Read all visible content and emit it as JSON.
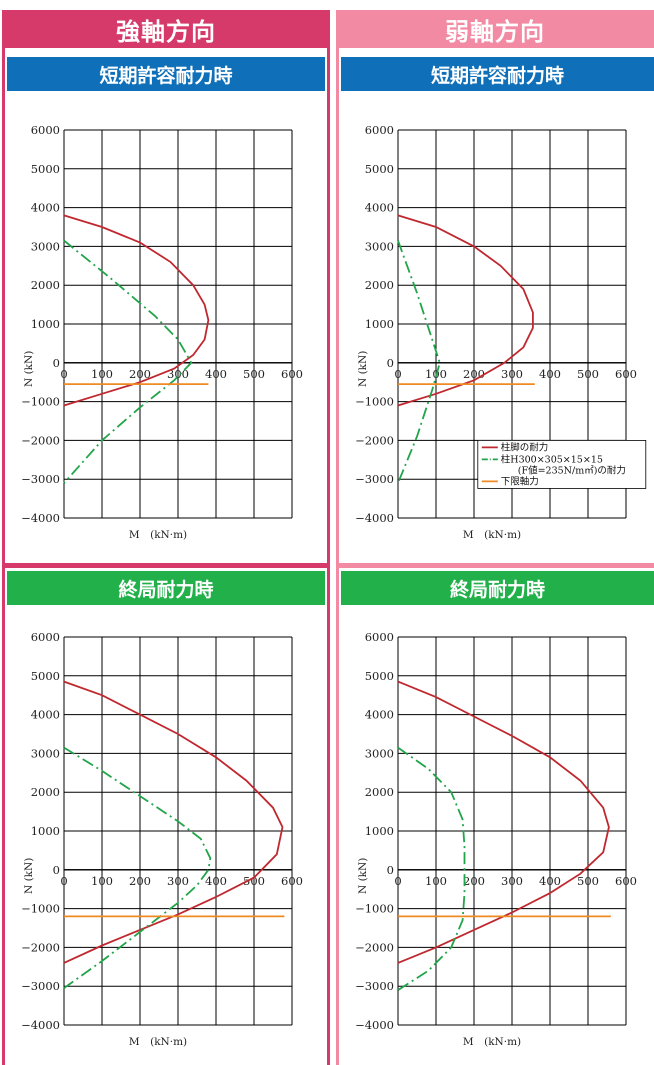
{
  "strong_axis": {
    "title": "強軸方向",
    "color": "#d63a6b",
    "panels": [
      {
        "title": "短期許容耐力時",
        "header_color": "#0f6fb8"
      },
      {
        "title": "終局耐力時",
        "header_color": "#22b04a"
      }
    ]
  },
  "weak_axis": {
    "title": "弱軸方向",
    "color": "#f28aa4",
    "panels": [
      {
        "title": "短期許容耐力時",
        "header_color": "#0f6fb8"
      },
      {
        "title": "終局耐力時",
        "header_color": "#22b04a"
      }
    ]
  },
  "legend": {
    "items": [
      {
        "label": "柱脚の耐力"
      },
      {
        "label": "柱H300×305×15×15",
        "label2": "(F値=235N/m㎡)の耐力"
      },
      {
        "label": "下限軸力"
      }
    ]
  },
  "series_colors": {
    "base": "#c0282f",
    "column": "#21a54a",
    "limit": "#ef8a22"
  },
  "chart_data": [
    {
      "type": "line",
      "panel": "strong-short",
      "xlabel": "M　(kN·m)",
      "ylabel": "N (kN)",
      "xlim": [
        0,
        600
      ],
      "ylim": [
        -4000,
        6000
      ],
      "xticks": [
        0,
        100,
        200,
        300,
        400,
        500,
        600
      ],
      "yticks": [
        6000,
        5000,
        4000,
        3000,
        2000,
        1000,
        0,
        -1000,
        -2000,
        -3000,
        -4000
      ],
      "grid": true,
      "series": [
        {
          "key": "base",
          "style": "solid",
          "points": [
            [
              0,
              3800
            ],
            [
              100,
              3500
            ],
            [
              200,
              3100
            ],
            [
              280,
              2600
            ],
            [
              340,
              2000
            ],
            [
              370,
              1500
            ],
            [
              380,
              1100
            ],
            [
              370,
              600
            ],
            [
              340,
              200
            ],
            [
              290,
              -150
            ],
            [
              200,
              -500
            ],
            [
              100,
              -800
            ],
            [
              0,
              -1100
            ]
          ]
        },
        {
          "key": "column",
          "style": "dashdot",
          "points": [
            [
              0,
              3150
            ],
            [
              120,
              2200
            ],
            [
              240,
              1200
            ],
            [
              300,
              600
            ],
            [
              335,
              0
            ],
            [
              290,
              -450
            ],
            [
              200,
              -1150
            ],
            [
              100,
              -2000
            ],
            [
              0,
              -3100
            ]
          ]
        },
        {
          "key": "limit",
          "style": "solid",
          "points": [
            [
              0,
              -550
            ],
            [
              380,
              -550
            ]
          ]
        }
      ]
    },
    {
      "type": "line",
      "panel": "weak-short",
      "xlabel": "M　(kN·m)",
      "ylabel": "N (kN)",
      "xlim": [
        0,
        600
      ],
      "ylim": [
        -4000,
        6000
      ],
      "xticks": [
        0,
        100,
        200,
        300,
        400,
        500,
        600
      ],
      "yticks": [
        6000,
        5000,
        4000,
        3000,
        2000,
        1000,
        0,
        -1000,
        -2000,
        -3000,
        -4000
      ],
      "grid": true,
      "legend": "lower-right",
      "series": [
        {
          "key": "base",
          "style": "solid",
          "points": [
            [
              0,
              3800
            ],
            [
              100,
              3500
            ],
            [
              200,
              3000
            ],
            [
              270,
              2500
            ],
            [
              330,
              1900
            ],
            [
              355,
              1300
            ],
            [
              355,
              900
            ],
            [
              330,
              400
            ],
            [
              280,
              0
            ],
            [
              200,
              -450
            ],
            [
              100,
              -800
            ],
            [
              0,
              -1100
            ]
          ]
        },
        {
          "key": "column",
          "style": "dashdot",
          "points": [
            [
              0,
              3150
            ],
            [
              50,
              1800
            ],
            [
              90,
              600
            ],
            [
              110,
              0
            ],
            [
              90,
              -700
            ],
            [
              50,
              -1900
            ],
            [
              0,
              -3100
            ]
          ]
        },
        {
          "key": "limit",
          "style": "solid",
          "points": [
            [
              0,
              -550
            ],
            [
              360,
              -550
            ]
          ]
        }
      ]
    },
    {
      "type": "line",
      "panel": "strong-ultimate",
      "xlabel": "M　(kN·m)",
      "ylabel": "N (kN)",
      "xlim": [
        0,
        600
      ],
      "ylim": [
        -4000,
        6000
      ],
      "xticks": [
        0,
        100,
        200,
        300,
        400,
        500,
        600
      ],
      "yticks": [
        6000,
        5000,
        4000,
        3000,
        2000,
        1000,
        0,
        -1000,
        -2000,
        -3000,
        -4000
      ],
      "grid": true,
      "series": [
        {
          "key": "base",
          "style": "solid",
          "points": [
            [
              0,
              4850
            ],
            [
              100,
              4500
            ],
            [
              200,
              4000
            ],
            [
              300,
              3500
            ],
            [
              400,
              2900
            ],
            [
              480,
              2300
            ],
            [
              550,
              1600
            ],
            [
              575,
              1100
            ],
            [
              560,
              400
            ],
            [
              500,
              -200
            ],
            [
              400,
              -700
            ],
            [
              300,
              -1150
            ],
            [
              200,
              -1550
            ],
            [
              100,
              -1950
            ],
            [
              0,
              -2400
            ]
          ]
        },
        {
          "key": "column",
          "style": "dashdot",
          "points": [
            [
              0,
              3150
            ],
            [
              100,
              2550
            ],
            [
              200,
              1900
            ],
            [
              300,
              1250
            ],
            [
              360,
              800
            ],
            [
              385,
              300
            ],
            [
              380,
              0
            ],
            [
              350,
              -400
            ],
            [
              300,
              -850
            ],
            [
              200,
              -1600
            ],
            [
              100,
              -2350
            ],
            [
              0,
              -3050
            ]
          ]
        },
        {
          "key": "limit",
          "style": "solid",
          "points": [
            [
              0,
              -1200
            ],
            [
              580,
              -1200
            ]
          ]
        }
      ]
    },
    {
      "type": "line",
      "panel": "weak-ultimate",
      "xlabel": "M　(kN·m)",
      "ylabel": "N (kN)",
      "xlim": [
        0,
        600
      ],
      "ylim": [
        -4000,
        6000
      ],
      "xticks": [
        0,
        100,
        200,
        300,
        400,
        500,
        600
      ],
      "yticks": [
        6000,
        5000,
        4000,
        3000,
        2000,
        1000,
        0,
        -1000,
        -2000,
        -3000,
        -4000
      ],
      "grid": true,
      "series": [
        {
          "key": "base",
          "style": "solid",
          "points": [
            [
              0,
              4850
            ],
            [
              100,
              4450
            ],
            [
              200,
              3950
            ],
            [
              300,
              3450
            ],
            [
              400,
              2900
            ],
            [
              480,
              2300
            ],
            [
              540,
              1600
            ],
            [
              555,
              1100
            ],
            [
              540,
              450
            ],
            [
              480,
              -100
            ],
            [
              400,
              -600
            ],
            [
              300,
              -1100
            ],
            [
              200,
              -1550
            ],
            [
              100,
              -2000
            ],
            [
              0,
              -2400
            ]
          ]
        },
        {
          "key": "column",
          "style": "dashdot",
          "points": [
            [
              0,
              3150
            ],
            [
              80,
              2600
            ],
            [
              140,
              2000
            ],
            [
              170,
              1300
            ],
            [
              175,
              600
            ],
            [
              175,
              -600
            ],
            [
              170,
              -1300
            ],
            [
              140,
              -2000
            ],
            [
              80,
              -2600
            ],
            [
              0,
              -3100
            ]
          ]
        },
        {
          "key": "limit",
          "style": "solid",
          "points": [
            [
              0,
              -1200
            ],
            [
              560,
              -1200
            ]
          ]
        }
      ]
    }
  ]
}
